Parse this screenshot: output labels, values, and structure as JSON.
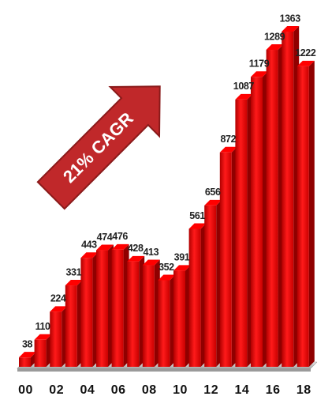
{
  "chart_data": {
    "type": "bar3d",
    "annotation": "21% CAGR",
    "categories": [
      "00",
      null,
      "02",
      null,
      "04",
      null,
      "06",
      null,
      "08",
      null,
      "10",
      null,
      "12",
      null,
      "14",
      null,
      "16",
      null,
      "18"
    ],
    "values": [
      38,
      110,
      224,
      331,
      443,
      474,
      476,
      428,
      413,
      352,
      391,
      561,
      656,
      872,
      1087,
      1179,
      1289,
      1363,
      1222
    ],
    "color": "#f00000"
  }
}
